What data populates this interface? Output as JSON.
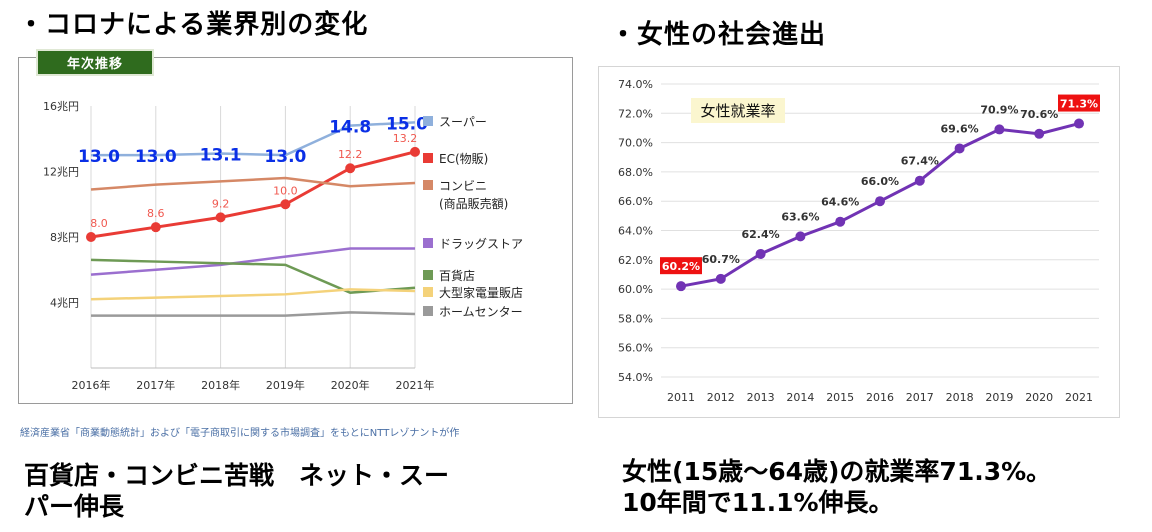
{
  "headings": {
    "left": "・コロナによる業界別の変化",
    "right": "・女性の社会進出"
  },
  "left_badge": "年次推移",
  "source_note": "経済産業省「商業動態統計」および「電子商取引に関する市場調査」をもとにNTTレゾナントが作",
  "captions": {
    "left_line1": "百貨店・コンビニ苦戦　ネット・スー",
    "left_line2": "パー伸長",
    "right_line1": "女性(15歳～64歳)の就業率71.3%。",
    "right_line2": "10年間で11.1%伸長。"
  },
  "chart_data": [
    {
      "type": "line",
      "x": [
        "2016年",
        "2017年",
        "2018年",
        "2019年",
        "2020年",
        "2021年"
      ],
      "ylim": [
        0,
        16
      ],
      "y_ticks": [
        {
          "value": 4,
          "label": "4兆円"
        },
        {
          "value": 8,
          "label": "8兆円"
        },
        {
          "value": 12,
          "label": "12兆円"
        },
        {
          "value": 16,
          "label": "16兆円"
        }
      ],
      "grid": "vertical",
      "legend": "right",
      "series": [
        {
          "name": "スーパー",
          "color": "#8fb0dc",
          "values": [
            13.0,
            13.0,
            13.1,
            13.0,
            14.8,
            15.0
          ],
          "labels": [
            "13.0",
            "13.0",
            "13.1",
            "13.0",
            "14.8",
            "15.0"
          ],
          "label_color": "#0a2fe6",
          "markers": false
        },
        {
          "name": "EC(物販)",
          "color": "#e93b35",
          "values": [
            8.0,
            8.6,
            9.2,
            10.0,
            12.2,
            13.2
          ],
          "labels": [
            "8.0",
            "8.6",
            "9.2",
            "10.0",
            "12.2",
            "13.2"
          ],
          "label_color": "#f0584f",
          "markers": true
        },
        {
          "name": "コンビニ\n(商品販売額)",
          "color": "#d58866",
          "values": [
            10.9,
            11.2,
            11.4,
            11.6,
            11.1,
            11.3
          ],
          "labels": [],
          "markers": false
        },
        {
          "name": "ドラッグストア",
          "color": "#9b6fcf",
          "values": [
            5.7,
            6.0,
            6.3,
            6.8,
            7.3,
            7.3
          ],
          "labels": [],
          "markers": false
        },
        {
          "name": "百貨店",
          "color": "#6e9a55",
          "values": [
            6.6,
            6.5,
            6.4,
            6.3,
            4.6,
            4.9
          ],
          "labels": [],
          "markers": false
        },
        {
          "name": "大型家電量販店",
          "color": "#f4d27a",
          "values": [
            4.2,
            4.3,
            4.4,
            4.5,
            4.8,
            4.7
          ],
          "labels": [],
          "markers": false
        },
        {
          "name": "ホームセンター",
          "color": "#9a9a9a",
          "values": [
            3.2,
            3.2,
            3.2,
            3.2,
            3.4,
            3.3
          ],
          "labels": [],
          "markers": false
        }
      ]
    },
    {
      "type": "line",
      "x": [
        "2011",
        "2012",
        "2013",
        "2014",
        "2015",
        "2016",
        "2017",
        "2018",
        "2019",
        "2020",
        "2021"
      ],
      "ylim": [
        54.0,
        74.0
      ],
      "y_tick_step": 2.0,
      "y_tick_format": "0.0%",
      "grid": "horizontal",
      "annotation": "女性就業率",
      "annotation_bg": "#fbf6cf",
      "series": [
        {
          "color": "#7133b4",
          "values": [
            60.2,
            60.7,
            62.4,
            63.6,
            64.6,
            66.0,
            67.4,
            69.6,
            70.9,
            70.6,
            71.3
          ],
          "labels": [
            "60.2%",
            "60.7%",
            "62.4%",
            "63.6%",
            "64.6%",
            "66.0%",
            "67.4%",
            "69.6%",
            "70.9%",
            "70.6%",
            "71.3%"
          ],
          "highlight_indices": [
            0,
            10
          ],
          "highlight_color": "#ee1111"
        }
      ]
    }
  ]
}
